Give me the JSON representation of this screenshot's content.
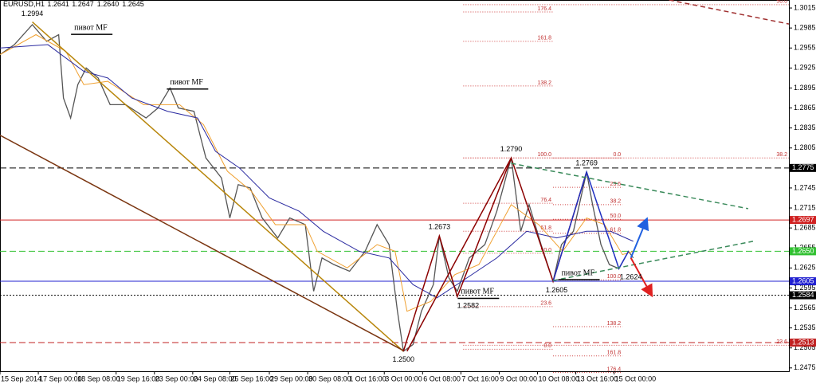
{
  "chart_data": {
    "type": "line",
    "title": "EURUSD,H1",
    "quote": [
      1.2641,
      1.2647,
      {
        "value": 1.264,
        "label": "1.2640"
      },
      1.2645
    ],
    "xlim": [
      0,
      659
    ],
    "ylim": [
      1.247,
      1.3027
    ],
    "xticks": [
      {
        "value": 0,
        "label": "15 Sep 2014"
      },
      {
        "value": 32,
        "label": "17 Sep 00:00"
      },
      {
        "value": 64,
        "label": "18 Sep 08:00"
      },
      {
        "value": 97,
        "label": "19 Sep 16:00"
      },
      {
        "value": 129,
        "label": "23 Sep 00:00"
      },
      {
        "value": 161,
        "label": "24 Sep 08:00"
      },
      {
        "value": 192,
        "label": "25 Sep 16:00"
      },
      {
        "value": 225,
        "label": "29 Sep 00:00"
      },
      {
        "value": 257,
        "label": "30 Sep 08:00"
      },
      {
        "value": 291,
        "label": "1 Oct 16:00"
      },
      {
        "value": 321,
        "label": "3 Oct 00:00"
      },
      {
        "value": 353,
        "label": "6 Oct 08:00"
      },
      {
        "value": 385,
        "label": "7 Oct 16:00"
      },
      {
        "value": 417,
        "label": "9 Oct 00:00"
      },
      {
        "value": 449,
        "label": "10 Oct 08:00"
      },
      {
        "value": 481,
        "label": "13 Oct 16:00"
      },
      {
        "value": 513,
        "label": "15 Oct 00:00"
      }
    ],
    "yticks": [
      1.2475,
      1.2505,
      1.2535,
      1.2565,
      1.2595,
      1.2625,
      1.2655,
      1.2685,
      1.2715,
      1.2745,
      1.2775,
      1.2805,
      1.2835,
      1.2865,
      1.2895,
      1.2925,
      1.2955,
      1.2985,
      1.3015
    ],
    "series": [
      {
        "color": "#555555",
        "x": [
          0,
          12,
          27,
          39,
          49,
          53,
          59,
          65,
          72,
          82,
          92,
          105,
          122,
          132,
          142,
          149,
          162,
          172,
          185,
          192,
          199,
          209,
          219,
          232,
          242,
          255,
          262,
          269,
          279,
          292,
          305,
          315,
          325,
          332,
          337,
          345,
          352,
          362,
          367,
          375,
          382,
          392,
          405,
          415,
          427,
          435,
          442,
          452,
          462,
          469,
          479,
          490,
          495,
          502,
          509,
          517,
          525,
          529
        ],
        "values": [
          1.2945,
          1.296,
          1.299,
          1.2965,
          1.2975,
          1.288,
          1.285,
          1.29,
          1.2925,
          1.291,
          1.287,
          1.287,
          1.285,
          1.2865,
          1.2895,
          1.2865,
          1.286,
          1.279,
          1.276,
          1.27,
          1.275,
          1.2745,
          1.27,
          1.267,
          1.27,
          1.269,
          1.259,
          1.264,
          1.263,
          1.262,
          1.265,
          1.269,
          1.266,
          1.256,
          1.25,
          1.251,
          1.256,
          1.26,
          1.2673,
          1.261,
          1.259,
          1.264,
          1.266,
          1.271,
          1.279,
          1.268,
          1.272,
          1.266,
          1.2605,
          1.266,
          1.268,
          1.2769,
          1.272,
          1.266,
          1.263,
          1.2624,
          1.265,
          1.264
        ]
      },
      {
        "color": "#f0a030",
        "x": [
          0,
          30,
          55,
          70,
          90,
          120,
          150,
          170,
          190,
          210,
          230,
          255,
          265,
          290,
          315,
          330,
          340,
          360,
          380,
          400,
          427,
          450,
          470,
          490,
          505,
          520,
          529
        ],
        "values": [
          1.2945,
          1.2975,
          1.295,
          1.29,
          1.2905,
          1.287,
          1.287,
          1.284,
          1.277,
          1.274,
          1.269,
          1.269,
          1.265,
          1.2625,
          1.266,
          1.265,
          1.256,
          1.2575,
          1.2615,
          1.263,
          1.272,
          1.269,
          1.265,
          1.27,
          1.269,
          1.2645,
          1.265
        ]
      },
      {
        "color": "#2a2aa0",
        "x": [
          0,
          40,
          70,
          90,
          110,
          140,
          165,
          180,
          200,
          225,
          250,
          270,
          300,
          325,
          345,
          365,
          390,
          415,
          440,
          465,
          490,
          510,
          529
        ],
        "values": [
          1.2955,
          1.296,
          1.292,
          1.291,
          1.288,
          1.286,
          1.285,
          1.28,
          1.2775,
          1.273,
          1.271,
          1.268,
          1.265,
          1.264,
          1.26,
          1.258,
          1.261,
          1.264,
          1.268,
          1.267,
          1.268,
          1.268,
          1.2665
        ]
      }
    ],
    "levels": [
      {
        "price": 1.2775,
        "color": "#000000",
        "dash": "8 4"
      },
      {
        "price": 1.2697,
        "color": "#d02020",
        "dash": "none"
      },
      {
        "price": {
          "value": 1.265,
          "label": "1.2650"
        },
        "color": "#30c030",
        "dash": "8 4"
      },
      {
        "price": 1.2605,
        "color": "#2020d0",
        "dash": "none"
      },
      {
        "price": 1.2584,
        "color": "#000000",
        "dash": "2 2"
      },
      {
        "price": 1.2513,
        "color": "#c02020",
        "dash": "8 4"
      }
    ],
    "drawings": [
      {
        "color": "#b8860b",
        "dash": "none",
        "x": [
          27,
          337
        ],
        "y": [
          1.2994,
          1.25
        ]
      },
      {
        "color": "#7a3510",
        "dash": "none",
        "x": [
          0,
          337
        ],
        "y": [
          1.2824,
          1.2501
        ]
      },
      {
        "color": "#8b0000",
        "dash": "none",
        "x": [
          337,
          367,
          382,
          427,
          462,
          490
        ],
        "y": [
          1.25,
          1.2673,
          1.2582,
          1.279,
          1.2605,
          1.2769
        ]
      },
      {
        "color": "#8b0000",
        "dash": "none",
        "x": [
          340,
          427
        ],
        "y": [
          1.25,
          1.279
        ]
      },
      {
        "color": "#2030c0",
        "dash": "none",
        "x": [
          462,
          490,
          517,
          525
        ],
        "y": [
          1.2605,
          1.2769,
          1.2624,
          1.265
        ]
      },
      {
        "color": "#3a8a5a",
        "dash": "6 4",
        "x": [
          427,
          625
        ],
        "y": [
          1.2782,
          1.2714
        ]
      },
      {
        "color": "#3a8a5a",
        "dash": "6 4",
        "x": [
          462,
          629
        ],
        "y": [
          1.2606,
          1.2665
        ]
      },
      {
        "color": "#a03030",
        "dash": "6 4",
        "x": [
          559,
          659
        ],
        "y": [
          1.3027,
          1.2991
        ]
      }
    ],
    "arrows": [
      {
        "color": "#2060e0",
        "x": [
          527,
          540
        ],
        "y": [
          1.264,
          1.2697
        ]
      },
      {
        "color": "#e02020",
        "x": [
          527,
          544
        ],
        "y": [
          1.264,
          1.2585
        ]
      }
    ],
    "fibs": [
      {
        "x": [
          387,
          462
        ],
        "levels": [
          {
            "level": 176.4,
            "price": 1.3009
          },
          {
            "level": 161.8,
            "price": 1.2965
          },
          {
            "level": 138.2,
            "price": 1.2898
          },
          {
            "level": {
              "value": 100,
              "label": "100.0"
            },
            "price": 1.279
          },
          {
            "level": 76.4,
            "price": 1.2722
          },
          {
            "level": 61.8,
            "price": 1.268
          },
          {
            "level": {
              "value": 50,
              "label": "50.0"
            },
            "price": 1.2647
          },
          {
            "level": 23.6,
            "price": 1.2567
          },
          {
            "level": {
              "value": 0,
              "label": "0.0"
            },
            "price": 1.2503
          }
        ]
      },
      {
        "x": [
          462,
          520
        ],
        "levels": [
          {
            "level": {
              "value": 0,
              "label": "0.0"
            },
            "price": 1.279
          },
          {
            "level": 23.6,
            "price": 1.2746
          },
          {
            "level": 38.2,
            "price": 1.272
          },
          {
            "level": {
              "value": 50,
              "label": "50.0"
            },
            "price": 1.2698
          },
          {
            "level": 61.8,
            "price": 1.2677
          },
          {
            "level": {
              "value": 100,
              "label": "100.0"
            },
            "price": 1.2607
          },
          {
            "level": 138.2,
            "price": 1.2537
          },
          {
            "level": 161.8,
            "price": 1.2493
          },
          {
            "level": 176.4,
            "price": 1.2468
          }
        ]
      },
      {
        "x": [
          387,
          659
        ],
        "levels": [
          {
            "level": {
              "value": 50,
              "label": "50.0"
            },
            "price": 1.302
          },
          {
            "level": 38.2,
            "price": 1.279
          },
          {
            "level": 23.6,
            "price": 1.2509
          }
        ]
      }
    ],
    "price_labels": [
      {
        "text": 1.2994,
        "x": 27,
        "y": 1.3006
      },
      {
        "text": {
          "value": 1.279,
          "label": "1.2790"
        },
        "x": 427,
        "y": 1.2803
      },
      {
        "text": 1.2769,
        "x": 490,
        "y": 1.2782
      },
      {
        "text": 1.2673,
        "x": 367,
        "y": 1.2686
      },
      {
        "text": 1.2582,
        "x": 391,
        "y": 1.2568
      },
      {
        "text": 1.2605,
        "x": 465,
        "y": 1.2591
      },
      {
        "text": 1.2624,
        "x": 527,
        "y": 1.2611
      },
      {
        "text": {
          "value": 1.25,
          "label": "1.2500"
        },
        "x": 337,
        "y": 1.2487
      }
    ],
    "pivots": [
      {
        "text": "пивот MF",
        "x": 62,
        "y": 1.2985
      },
      {
        "text": "пивот MF",
        "x": 142,
        "y": 1.2903
      },
      {
        "text": "пивот MF",
        "x": 385,
        "y": 1.2589
      },
      {
        "text": "пивот MF",
        "x": 469,
        "y": 1.2617
      }
    ]
  }
}
